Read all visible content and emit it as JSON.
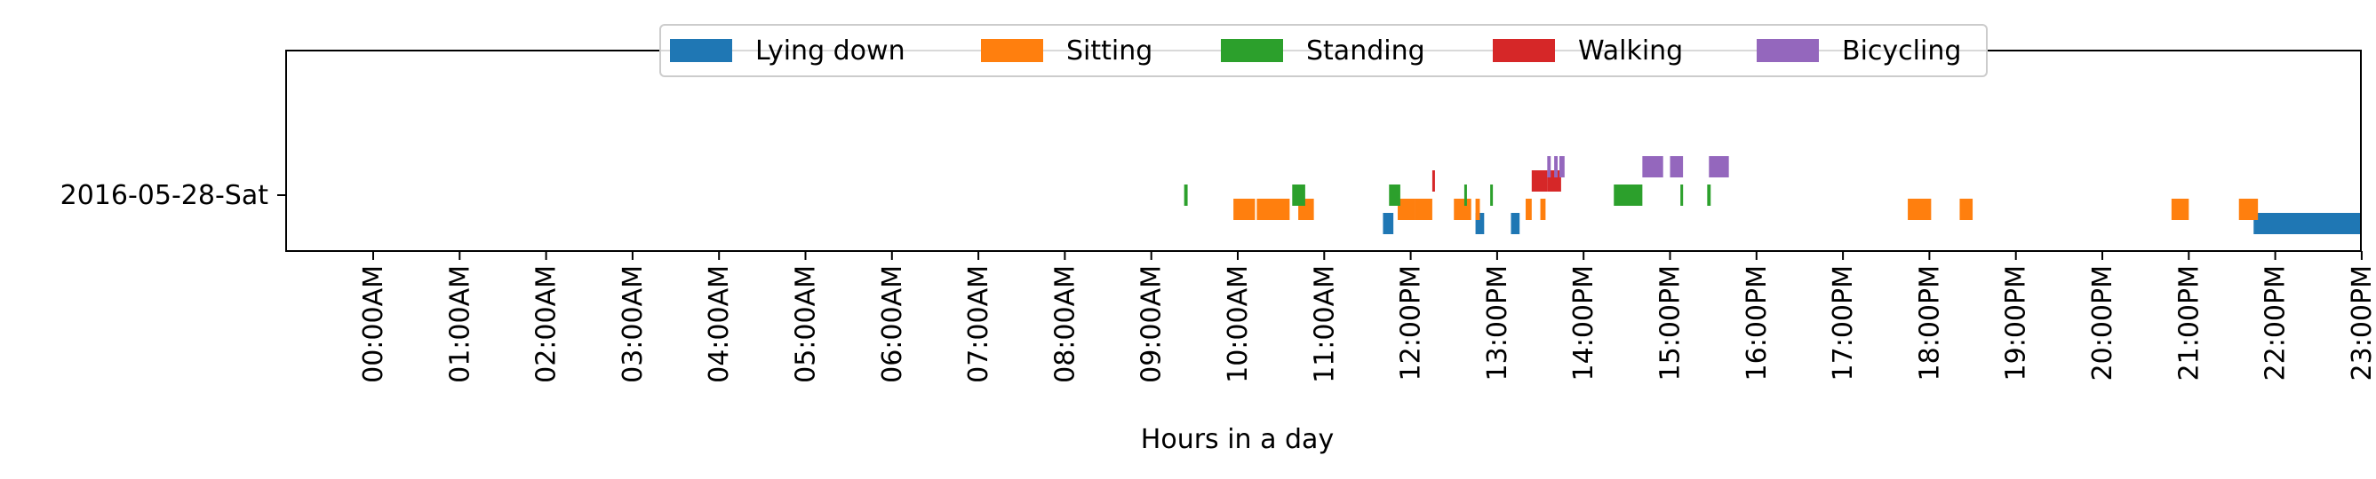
{
  "chart_data": {
    "type": "timeline",
    "xlabel": "Hours in a day",
    "xlim": [
      0,
      24
    ],
    "xticks": [
      0,
      1,
      2,
      3,
      4,
      5,
      6,
      7,
      8,
      9,
      10,
      11,
      12,
      13,
      14,
      15,
      16,
      17,
      18,
      19,
      20,
      21,
      22,
      23
    ],
    "xtick_labels": [
      "00:00AM",
      "01:00AM",
      "02:00AM",
      "03:00AM",
      "04:00AM",
      "05:00AM",
      "06:00AM",
      "07:00AM",
      "08:00AM",
      "09:00AM",
      "10:00AM",
      "11:00AM",
      "12:00PM",
      "13:00PM",
      "14:00PM",
      "15:00PM",
      "16:00PM",
      "17:00PM",
      "18:00PM",
      "19:00PM",
      "20:00PM",
      "21:00PM",
      "22:00PM",
      "23:00PM"
    ],
    "rows": [
      "2016-05-28-Sat"
    ],
    "legend_position": "top-center",
    "series": [
      {
        "name": "Lying down",
        "color": "#1f77b4",
        "level": 0,
        "intervals": [
          [
            11.68,
            11.8
          ],
          [
            12.75,
            12.85
          ],
          [
            13.16,
            13.26
          ],
          [
            21.75,
            23.0
          ]
        ]
      },
      {
        "name": "Sitting",
        "color": "#ff7f0e",
        "level": 1,
        "intervals": [
          [
            9.95,
            10.2
          ],
          [
            10.22,
            10.6
          ],
          [
            10.7,
            10.88
          ],
          [
            11.85,
            12.05
          ],
          [
            12.05,
            12.25
          ],
          [
            12.5,
            12.7
          ],
          [
            12.75,
            12.8
          ],
          [
            13.33,
            13.4
          ],
          [
            13.5,
            13.56
          ],
          [
            17.75,
            18.02
          ],
          [
            18.35,
            18.5
          ],
          [
            20.8,
            21.0
          ],
          [
            21.58,
            21.8
          ]
        ]
      },
      {
        "name": "Standing",
        "color": "#2ca02c",
        "level": 2,
        "intervals": [
          [
            9.38,
            9.42
          ],
          [
            10.63,
            10.78
          ],
          [
            11.75,
            11.88
          ],
          [
            12.62,
            12.65
          ],
          [
            12.92,
            12.95
          ],
          [
            14.35,
            14.68
          ],
          [
            15.12,
            15.15
          ],
          [
            15.43,
            15.47
          ]
        ]
      },
      {
        "name": "Walking",
        "color": "#d62728",
        "level": 3,
        "intervals": [
          [
            12.25,
            12.28
          ],
          [
            13.4,
            13.58
          ],
          [
            13.58,
            13.74
          ]
        ]
      },
      {
        "name": "Bicycling",
        "color": "#9467bd",
        "level": 4,
        "intervals": [
          [
            13.58,
            13.62
          ],
          [
            13.66,
            13.7
          ],
          [
            13.72,
            13.78
          ],
          [
            14.68,
            14.92
          ],
          [
            15.0,
            15.15
          ],
          [
            15.45,
            15.68
          ]
        ]
      }
    ]
  }
}
